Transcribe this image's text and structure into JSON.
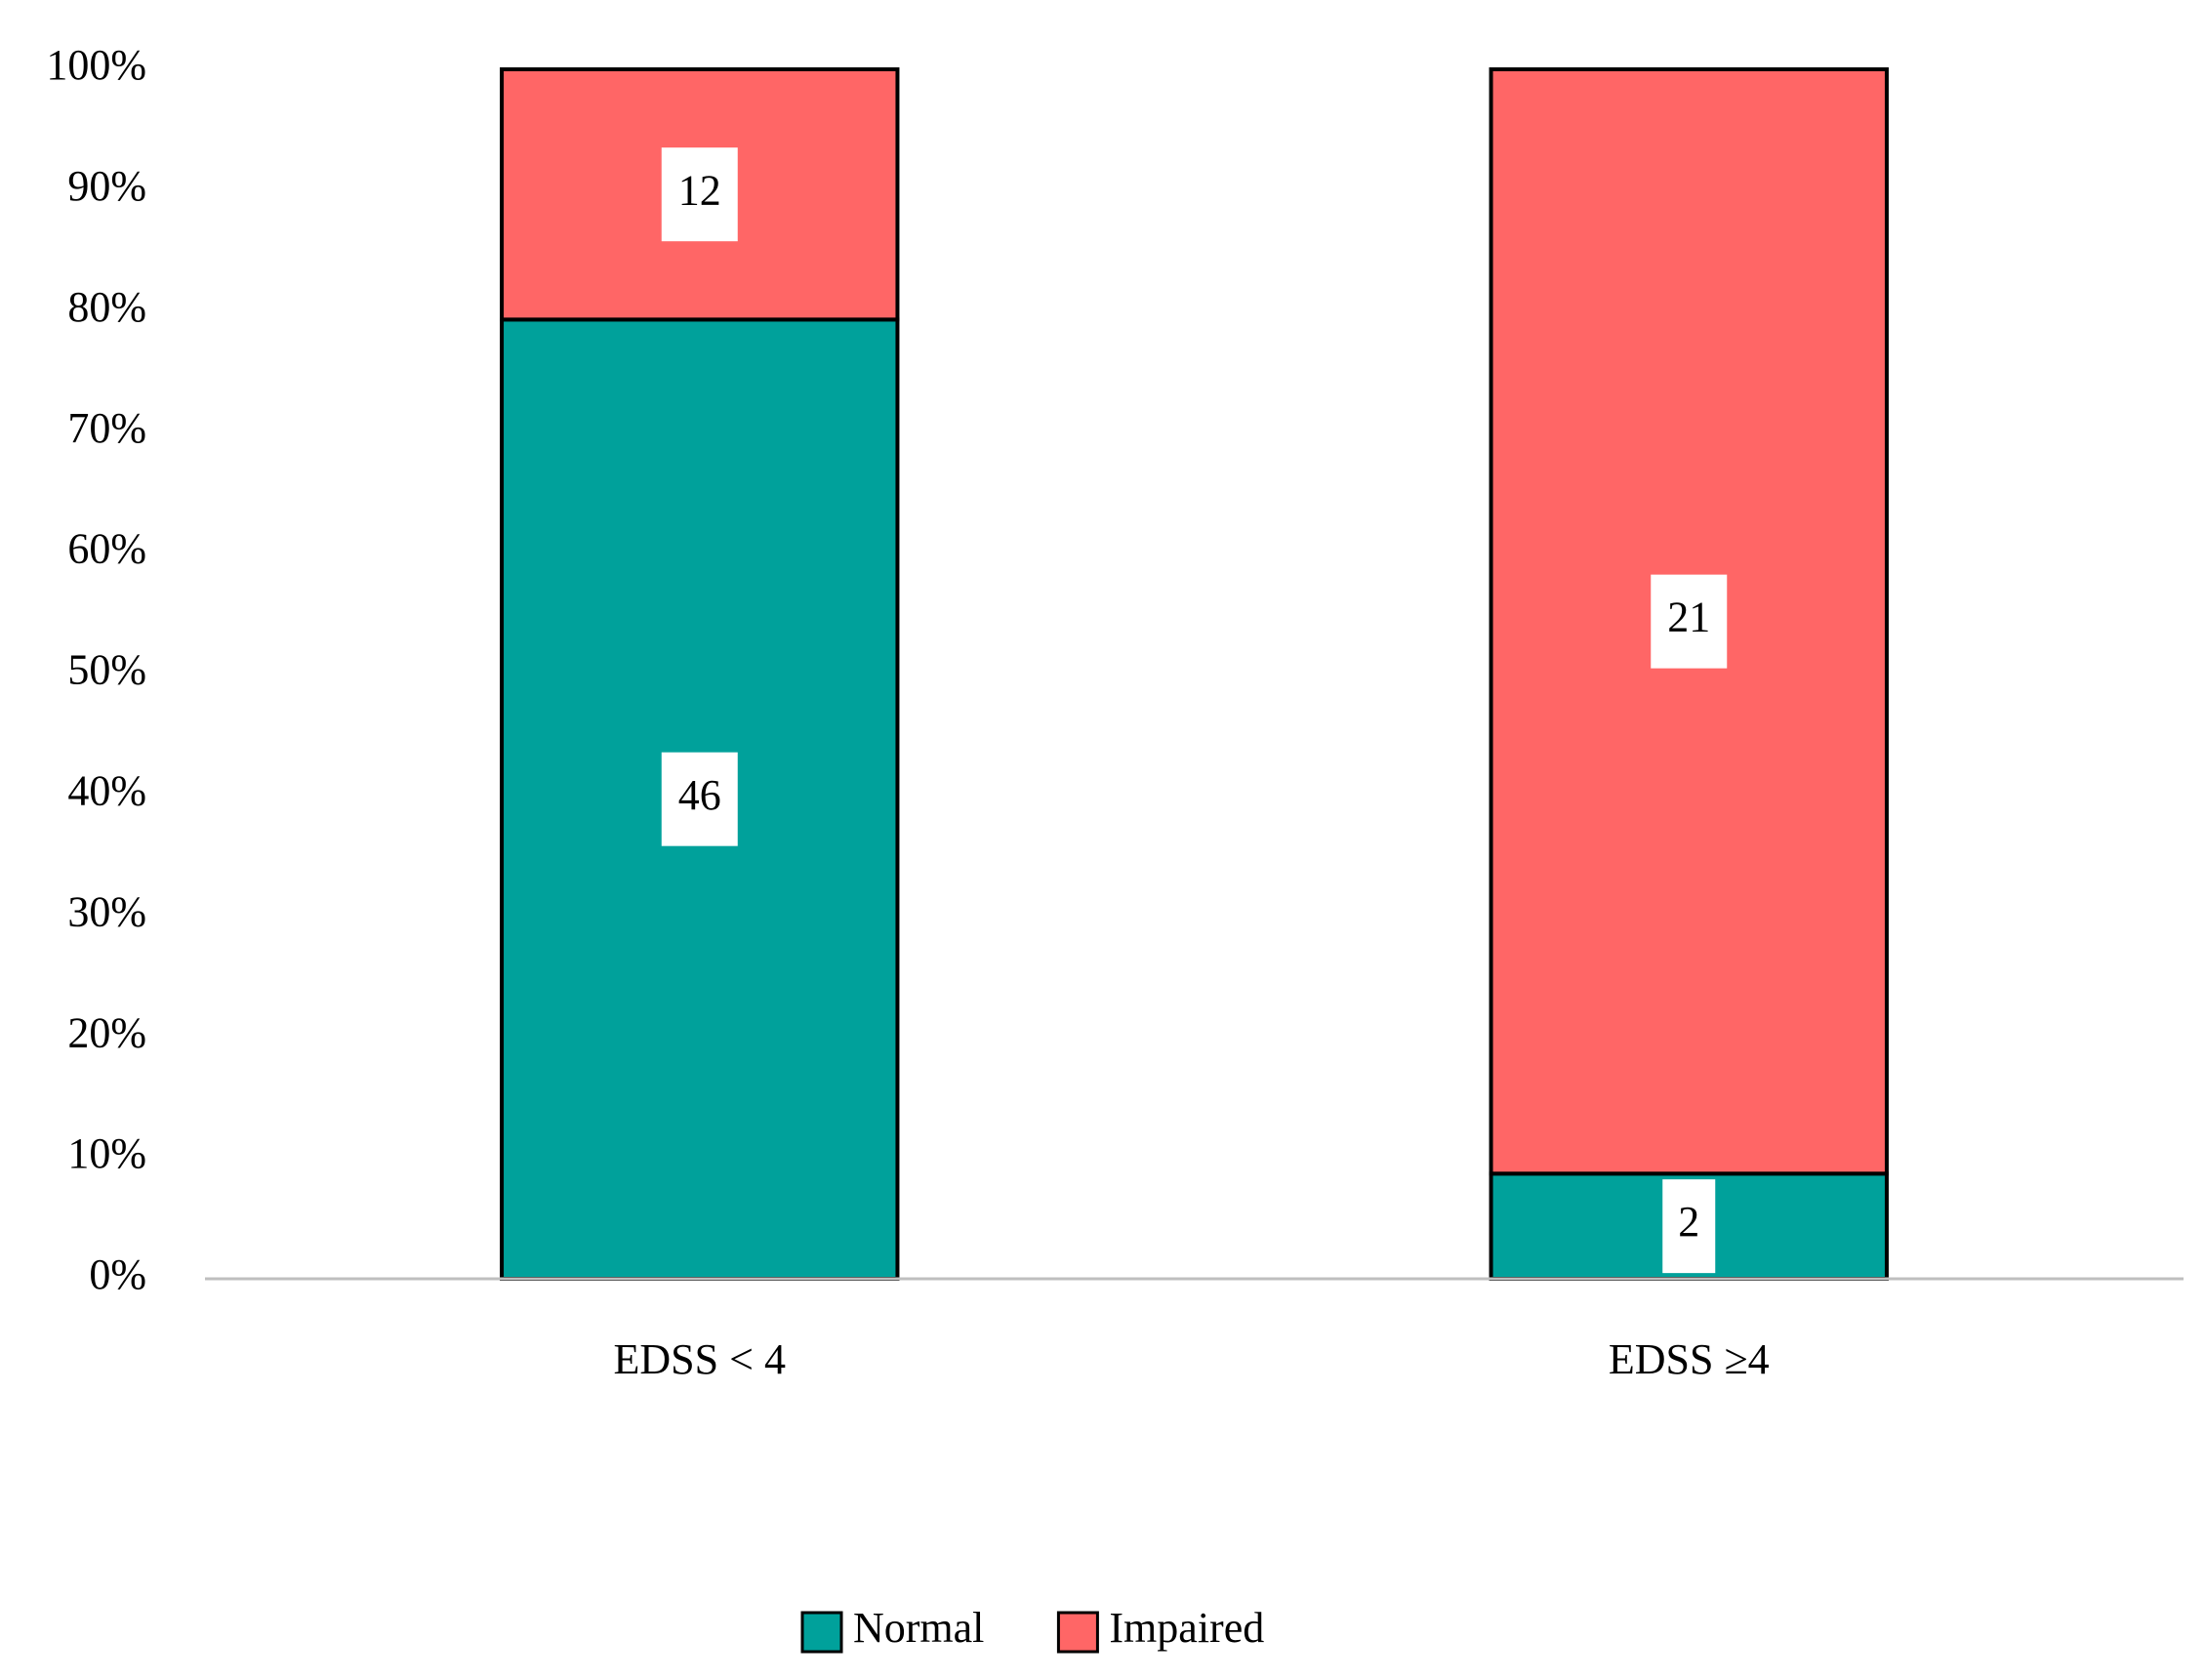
{
  "chart_data": {
    "type": "bar",
    "stacking": "percent",
    "categories": [
      "EDSS < 4",
      "EDSS ≥4"
    ],
    "series": [
      {
        "name": "Normal",
        "color": "#00a19b",
        "values": [
          46,
          2
        ]
      },
      {
        "name": "Impaired",
        "color": "#ff6666",
        "values": [
          12,
          21
        ]
      }
    ],
    "ylim": [
      0,
      100
    ],
    "yticks": [
      {
        "value": 0,
        "label": "0%"
      },
      {
        "value": 10,
        "label": "10%"
      },
      {
        "value": 20,
        "label": "20%"
      },
      {
        "value": 30,
        "label": "30%"
      },
      {
        "value": 40,
        "label": "40%"
      },
      {
        "value": 50,
        "label": "50%"
      },
      {
        "value": 60,
        "label": "60%"
      },
      {
        "value": 70,
        "label": "70%"
      },
      {
        "value": 80,
        "label": "80%"
      },
      {
        "value": 90,
        "label": "90%"
      },
      {
        "value": 100,
        "label": "100%"
      }
    ],
    "grid": false,
    "legend": "bottom"
  }
}
